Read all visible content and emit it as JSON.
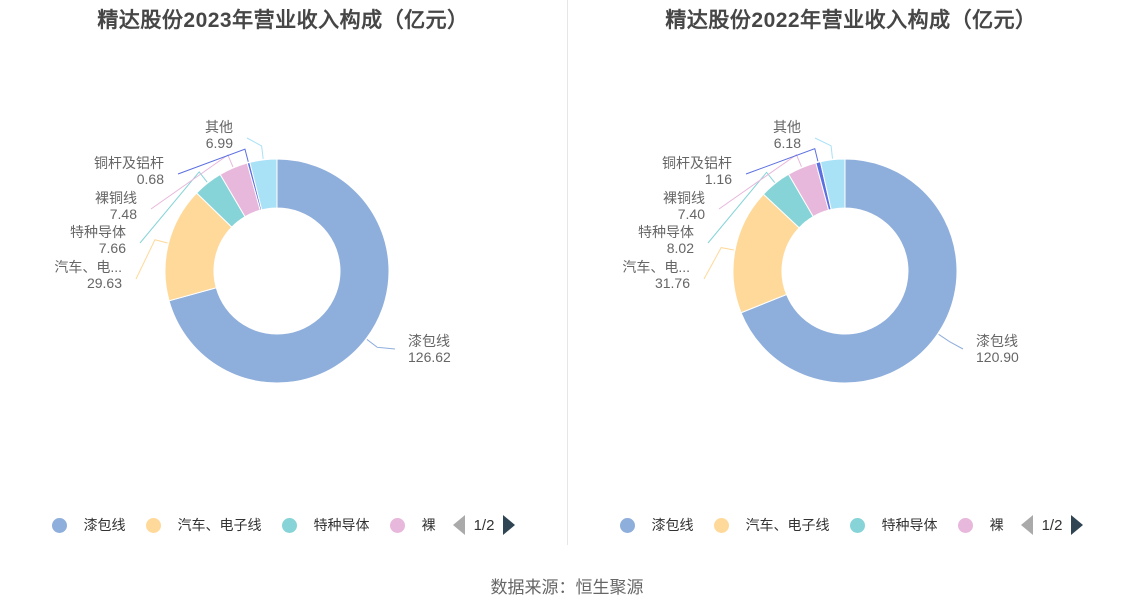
{
  "footer": {
    "source": "数据来源：恒生聚源"
  },
  "colors": {
    "sector": [
      "#8eaedc",
      "#ffd99a",
      "#86d4d8",
      "#e8b7dc",
      "#5b6fe0",
      "#a9e1f7"
    ],
    "label_text": "#666666"
  },
  "chart_data": [
    {
      "type": "pie",
      "variant": "donut",
      "title": "精达股份2023年营业收入构成（亿元）",
      "unit": "亿元",
      "slices": [
        {
          "name": "漆包线",
          "display_name": "漆包线",
          "value": 126.62,
          "value_label": "126.62"
        },
        {
          "name": "汽车、电子线",
          "display_name": "汽车、电...",
          "value": 29.63,
          "value_label": "29.63"
        },
        {
          "name": "特种导体",
          "display_name": "特种导体",
          "value": 7.66,
          "value_label": "7.66"
        },
        {
          "name": "裸铜线",
          "display_name": "裸铜线",
          "value": 7.48,
          "value_label": "7.48"
        },
        {
          "name": "铜杆及铝杆",
          "display_name": "铜杆及铝杆",
          "value": 0.68,
          "value_label": "0.68"
        },
        {
          "name": "其他",
          "display_name": "其他",
          "value": 6.99,
          "value_label": "6.99"
        }
      ],
      "legend": {
        "position": "bottom",
        "visible_items": [
          "漆包线",
          "汽车、电子线",
          "特种导体",
          "裸"
        ],
        "page": "1/2"
      }
    },
    {
      "type": "pie",
      "variant": "donut",
      "title": "精达股份2022年营业收入构成（亿元）",
      "unit": "亿元",
      "slices": [
        {
          "name": "漆包线",
          "display_name": "漆包线",
          "value": 120.9,
          "value_label": "120.90"
        },
        {
          "name": "汽车、电子线",
          "display_name": "汽车、电...",
          "value": 31.76,
          "value_label": "31.76"
        },
        {
          "name": "特种导体",
          "display_name": "特种导体",
          "value": 8.02,
          "value_label": "8.02"
        },
        {
          "name": "裸铜线",
          "display_name": "裸铜线",
          "value": 7.4,
          "value_label": "7.40"
        },
        {
          "name": "铜杆及铝杆",
          "display_name": "铜杆及铝杆",
          "value": 1.16,
          "value_label": "1.16"
        },
        {
          "name": "其他",
          "display_name": "其他",
          "value": 6.18,
          "value_label": "6.18"
        }
      ],
      "legend": {
        "position": "bottom",
        "visible_items": [
          "漆包线",
          "汽车、电子线",
          "特种导体",
          "裸"
        ],
        "page": "1/2"
      }
    }
  ]
}
